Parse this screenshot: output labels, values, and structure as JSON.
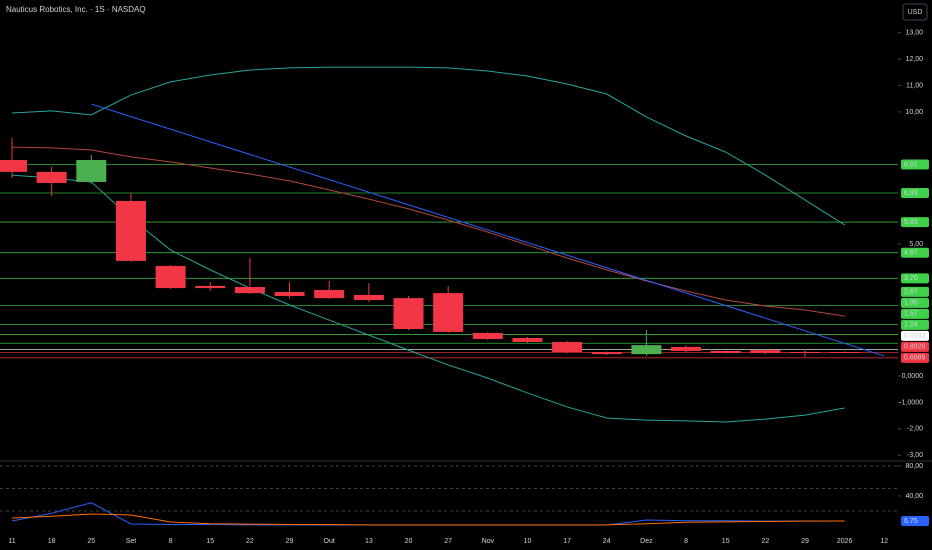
{
  "chart_data": {
    "type": "candlestick",
    "title": "Nauticus Robotics, Inc. · 1S · NASDAQ",
    "currency": "USD",
    "categories": [
      "11",
      "18",
      "25",
      "Set",
      "8",
      "15",
      "22",
      "29",
      "Out",
      "13",
      "20",
      "27",
      "Nov",
      "10",
      "17",
      "24",
      "Dez",
      "8",
      "15",
      "22",
      "29",
      "2026",
      "12"
    ],
    "open": [
      8.18,
      7.73,
      7.35,
      6.63,
      4.17,
      3.41,
      3.37,
      3.18,
      3.26,
      3.07,
      2.95,
      3.14,
      1.63,
      1.44,
      1.29,
      0.91,
      0.83,
      1.1,
      0.95,
      0.98,
      0.91,
      0.91,
      null
    ],
    "high": [
      9.02,
      7.92,
      8.37,
      6.93,
      4.2,
      3.56,
      4.47,
      3.56,
      3.6,
      3.52,
      3.03,
      3.41,
      1.67,
      1.48,
      1.33,
      0.93,
      1.74,
      1.17,
      0.97,
      1.0,
      1.02,
      0.93,
      null
    ],
    "low": [
      7.5,
      6.82,
      7.3,
      4.32,
      3.3,
      3.22,
      3.11,
      2.95,
      2.92,
      2.8,
      1.74,
      1.63,
      1.36,
      1.25,
      0.87,
      0.8,
      0.76,
      0.91,
      0.85,
      0.83,
      0.72,
      0.87,
      null
    ],
    "close": [
      7.73,
      7.31,
      8.18,
      4.36,
      3.33,
      3.33,
      3.14,
      3.03,
      2.95,
      2.88,
      1.78,
      1.67,
      1.4,
      1.29,
      0.91,
      0.83,
      1.17,
      0.95,
      0.87,
      0.87,
      0.87,
      0.89,
      null
    ],
    "up_color": "#4caf50",
    "down_color": "#f23645",
    "overlays": [
      {
        "color": "#26a69a",
        "values": [
          9.96,
          10.04,
          9.89,
          10.64,
          11.14,
          11.4,
          11.59,
          11.67,
          11.7,
          11.7,
          11.7,
          11.67,
          11.55,
          11.36,
          11.06,
          10.68,
          9.81,
          9.09,
          8.48,
          7.61,
          6.67,
          5.72,
          null
        ]
      },
      {
        "color": "#26a69a",
        "values": [
          7.61,
          7.5,
          7.35,
          5.98,
          4.77,
          4.02,
          3.33,
          2.69,
          2.12,
          1.55,
          0.98,
          0.42,
          -0.08,
          -0.64,
          -1.17,
          -1.59,
          -1.67,
          -1.7,
          -1.74,
          -1.63,
          -1.48,
          -1.21,
          null
        ]
      },
      {
        "color": "#b2463d",
        "values": [
          8.67,
          8.64,
          8.56,
          8.3,
          8.11,
          7.88,
          7.65,
          7.39,
          7.05,
          6.7,
          6.33,
          5.91,
          5.45,
          4.96,
          4.47,
          4.02,
          3.6,
          3.22,
          2.88,
          2.65,
          2.5,
          2.27,
          null
        ]
      }
    ],
    "trendline": {
      "color": "#2962ff",
      "at": [
        "25",
        "12"
      ],
      "values": [
        10.3,
        0.76
      ]
    },
    "levels": [
      {
        "value": 8.01,
        "label": "8,01",
        "color": "#3fd14a"
      },
      {
        "value": 6.93,
        "label": "6,93",
        "color": "#3fd14a"
      },
      {
        "value": 5.83,
        "label": "5,83",
        "color": "#3fd14a"
      },
      {
        "value": 4.67,
        "label": "4,67",
        "color": "#3fd14a"
      },
      {
        "value": 3.7,
        "label": "3,70",
        "color": "#3fd14a"
      },
      {
        "value": 2.67,
        "label": "2,67",
        "color": "#3fd14a"
      },
      {
        "value": 1.95,
        "label": "1,95",
        "color": "#3fd14a"
      },
      {
        "value": 1.57,
        "label": "1,57",
        "color": "#3fd14a"
      },
      {
        "value": 1.24,
        "label": "1,24",
        "color": "#3fd14a"
      },
      {
        "value": 0.9993,
        "label": "0,9993",
        "color": "#ffffff"
      },
      {
        "value": 0.892,
        "label": "0,8920",
        "color": "#f23645"
      },
      {
        "value": 0.6889,
        "label": "0,6889",
        "color": "#f23645"
      }
    ],
    "ylim": [
      -3.18,
      14.24
    ],
    "yticks": [
      {
        "value": 13,
        "label": "13,00"
      },
      {
        "value": 12,
        "label": "12,00"
      },
      {
        "value": 11,
        "label": "11,00"
      },
      {
        "value": 10,
        "label": "10,00"
      },
      {
        "value": 5,
        "label": "5,00"
      },
      {
        "value": 0,
        "label": "0,0000"
      },
      {
        "value": -1,
        "label": "-1,0000"
      },
      {
        "value": -2,
        "label": "-2,00"
      },
      {
        "value": -3,
        "label": "-3,00"
      }
    ],
    "oscillator": {
      "ylim": [
        -26,
        88
      ],
      "yticks": [
        {
          "value": 80,
          "label": "80,00"
        },
        {
          "value": 40,
          "label": "40,00"
        }
      ],
      "levels": [
        80,
        50,
        20
      ],
      "series": [
        {
          "color": "#2962ff",
          "values": [
            6.7,
            17,
            31,
            2.7,
            2,
            2,
            1.5,
            1.5,
            1.3,
            1.3,
            1.3,
            1.3,
            1.3,
            1.3,
            1.3,
            1.3,
            8,
            7,
            7,
            6.5,
            6.7,
            6.75,
            null
          ]
        },
        {
          "color": "#ff6d00",
          "values": [
            10.7,
            13,
            16,
            14.7,
            5.3,
            3,
            2.5,
            2,
            2,
            1.5,
            1.5,
            1.5,
            1.5,
            1.5,
            1.5,
            1.5,
            3,
            5,
            5.5,
            6,
            6.5,
            6.75,
            null
          ]
        }
      ],
      "last": {
        "value": 6.75,
        "label": "6,75",
        "color": "#2962ff"
      }
    }
  }
}
